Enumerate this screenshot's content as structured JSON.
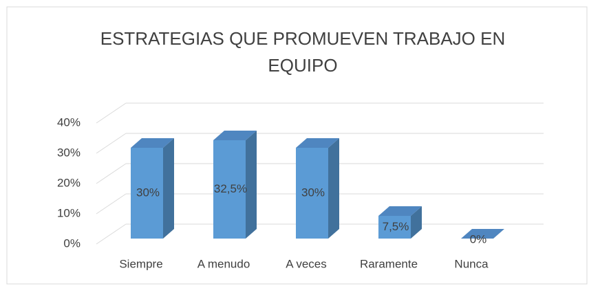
{
  "chart_data": {
    "type": "bar3d",
    "title": "ESTRATEGIAS QUE PROMUEVEN TRABAJO EN EQUIPO",
    "categories": [
      "Siempre",
      "A menudo",
      "A veces",
      "Raramente",
      "Nunca"
    ],
    "values": [
      30,
      32.5,
      30,
      7.5,
      0
    ],
    "value_labels": [
      "30%",
      "32,5%",
      "30%",
      "7,5%",
      "0%"
    ],
    "color": "#5b9bd5",
    "ylim": [
      0,
      40
    ],
    "yticks": [
      {
        "value": 0,
        "label": "0%"
      },
      {
        "value": 10,
        "label": "10%"
      },
      {
        "value": 20,
        "label": "20%"
      },
      {
        "value": 30,
        "label": "30%"
      },
      {
        "value": 40,
        "label": "40%"
      }
    ],
    "grid": true
  }
}
